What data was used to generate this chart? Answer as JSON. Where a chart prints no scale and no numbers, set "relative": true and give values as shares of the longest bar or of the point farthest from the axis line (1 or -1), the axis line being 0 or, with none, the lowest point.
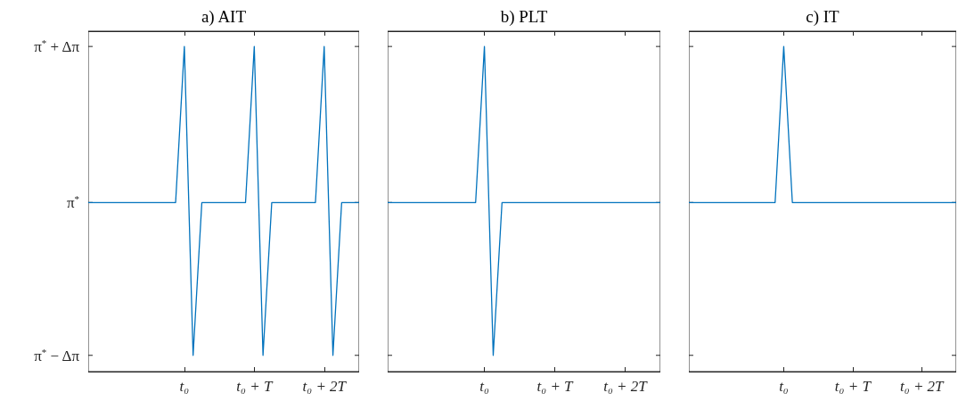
{
  "chart_data": [
    {
      "type": "line",
      "title": "a) AIT",
      "relative": true,
      "categories": [
        null,
        null,
        null,
        null,
        null,
        null,
        null,
        null,
        null,
        null,
        null,
        "t₀",
        null,
        null,
        null,
        null,
        null,
        null,
        null,
        "t₀ + T",
        null,
        null,
        null,
        null,
        null,
        null,
        null,
        "t₀ + 2T",
        null,
        null,
        null,
        null
      ],
      "annotations": [
        "π$^{*}$ − Δπ",
        "π$^{*}$",
        "π$^{*}$ + Δπ"
      ],
      "grid": false,
      "series": [
        {
          "color": "#0072bd",
          "values": [
            0.52,
            0.52,
            0.52,
            0.52,
            0.52,
            0.52,
            0.52,
            0.52,
            0.52,
            0.52,
            0.52,
            1,
            0.05,
            0.52,
            0.52,
            0.52,
            0.52,
            0.52,
            0.52,
            1,
            0.05,
            0.52,
            0.52,
            0.52,
            0.52,
            0.52,
            0.52,
            1,
            0.05,
            0.52,
            0.52,
            0.52
          ]
        }
      ]
    },
    {
      "type": "line",
      "title": "b) PLT",
      "relative": true,
      "categories": [
        null,
        null,
        null,
        null,
        null,
        null,
        null,
        null,
        null,
        null,
        null,
        "t₀",
        null,
        null,
        null,
        null,
        null,
        null,
        null,
        "t₀ + T",
        null,
        null,
        null,
        null,
        null,
        null,
        null,
        "t₀ + 2T",
        null,
        null,
        null,
        null
      ],
      "grid": false,
      "series": [
        {
          "color": "#0072bd",
          "values": [
            0.52,
            0.52,
            0.52,
            0.52,
            0.52,
            0.52,
            0.52,
            0.52,
            0.52,
            0.52,
            0.52,
            1,
            0.05,
            0.52,
            0.52,
            0.52,
            0.52,
            0.52,
            0.52,
            0.52,
            0.52,
            0.52,
            0.52,
            0.52,
            0.52,
            0.52,
            0.52,
            0.52,
            0.52,
            0.52,
            0.52,
            0.52
          ]
        }
      ]
    },
    {
      "type": "line",
      "title": "c) IT",
      "relative": true,
      "categories": [
        null,
        null,
        null,
        null,
        null,
        null,
        null,
        null,
        null,
        null,
        null,
        "t₀",
        null,
        null,
        null,
        null,
        null,
        null,
        null,
        "t₀ + T",
        null,
        null,
        null,
        null,
        null,
        null,
        null,
        "t₀ + 2T",
        null,
        null,
        null,
        null
      ],
      "grid": false,
      "series": [
        {
          "color": "#0072bd",
          "values": [
            0.52,
            0.52,
            0.52,
            0.52,
            0.52,
            0.52,
            0.52,
            0.52,
            0.52,
            0.52,
            0.52,
            1,
            0.52,
            0.52,
            0.52,
            0.52,
            0.52,
            0.52,
            0.52,
            0.52,
            0.52,
            0.52,
            0.52,
            0.52,
            0.52,
            0.52,
            0.52,
            0.52,
            0.52,
            0.52,
            0.52,
            0.52
          ]
        }
      ]
    }
  ]
}
